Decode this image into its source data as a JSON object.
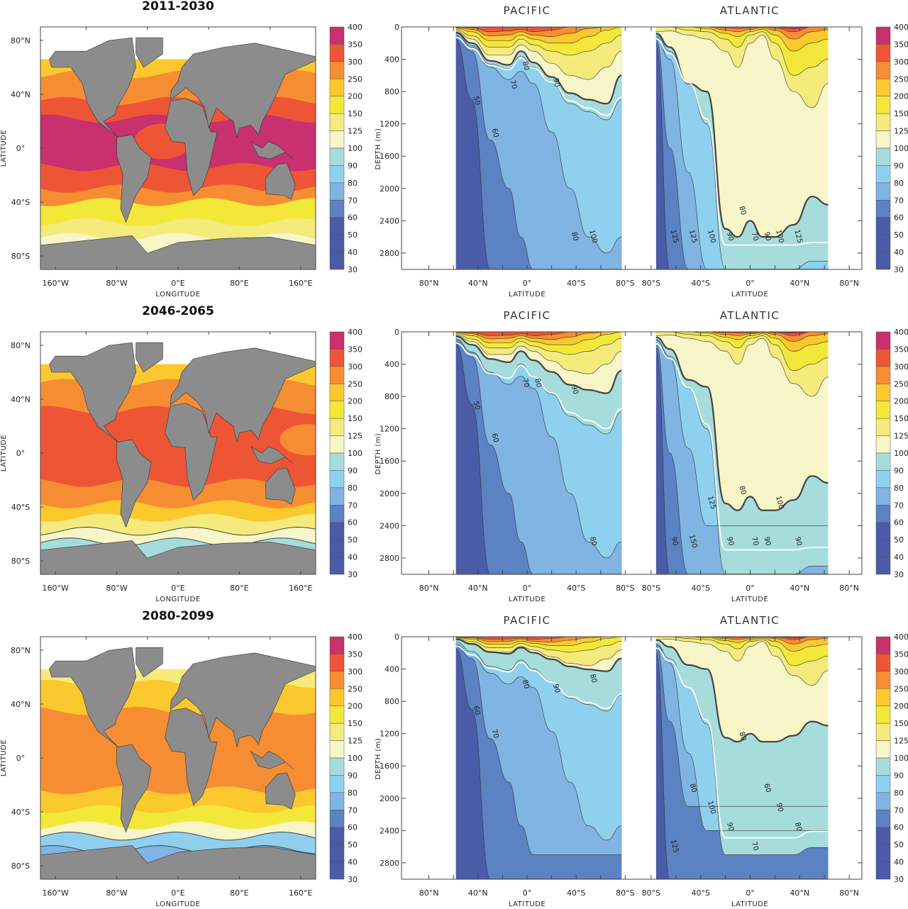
{
  "figure": {
    "row_titles": [
      "2011-2030",
      "2046-2065",
      "2080-2099"
    ],
    "basin_titles": [
      "PACIFIC",
      "ATLANTIC"
    ]
  },
  "chart_data": {
    "type": "heatmap",
    "description_kind": "contour maps and depth-latitude sections",
    "colorbar": {
      "labels": [
        "400",
        "350",
        "300",
        "250",
        "200",
        "150",
        "125",
        "100",
        "90",
        "80",
        "70",
        "60",
        "50",
        "40",
        "30"
      ],
      "levels": [
        30,
        40,
        50,
        60,
        70,
        80,
        90,
        100,
        125,
        150,
        200,
        250,
        300,
        350,
        400
      ],
      "colors": [
        "#4a5ba8",
        "#4a5ba8",
        "#4a5ba8",
        "#5b82c2",
        "#80b4e2",
        "#8fd0ef",
        "#a6dcdc",
        "#f8f5c8",
        "#f4eb7c",
        "#f3e83a",
        "#fbc82e",
        "#f68d33",
        "#ee5535",
        "#c8306e"
      ]
    },
    "map_axes": {
      "lat_ticks": [
        "80°N",
        "40°N",
        "0°",
        "40°S",
        "80°S"
      ],
      "lon_ticks": [
        "160°W",
        "80°W",
        "0°E",
        "80°E",
        "160°E"
      ],
      "xlabel": "LONGITUDE",
      "ylabel": "LATITUDE"
    },
    "section_axes": {
      "depth_ticks": [
        "0",
        "400",
        "800",
        "1200",
        "1600",
        "2000",
        "2400",
        "2800"
      ],
      "pacific_lat_ticks": [
        "80°N",
        "40°N",
        "0°",
        "40°S",
        "80°S"
      ],
      "atlantic_lat_ticks": [
        "80°S",
        "40°S",
        "0°",
        "40°N",
        "80°N"
      ],
      "xlabel": "LATITUDE",
      "ylabel": "DEPTH (m)",
      "depth_range": [
        0,
        3000
      ]
    },
    "contour_labels": {
      "pacific": [
        [
          "50",
          "60",
          "70",
          "80",
          "90",
          "80",
          "100"
        ],
        [
          "50",
          "60",
          "70",
          "80",
          "90",
          "80"
        ],
        [
          "60",
          "70",
          "80",
          "90",
          "80"
        ]
      ],
      "atlantic": [
        [
          "125",
          "125",
          "100",
          "90",
          "80",
          "70",
          "90",
          "100",
          "125"
        ],
        [
          "90",
          "150",
          "125",
          "90",
          "80",
          "70",
          "90",
          "100",
          "90"
        ],
        [
          "125",
          "80",
          "100",
          "90",
          "80",
          "70",
          "60",
          "90",
          "80"
        ]
      ]
    }
  }
}
